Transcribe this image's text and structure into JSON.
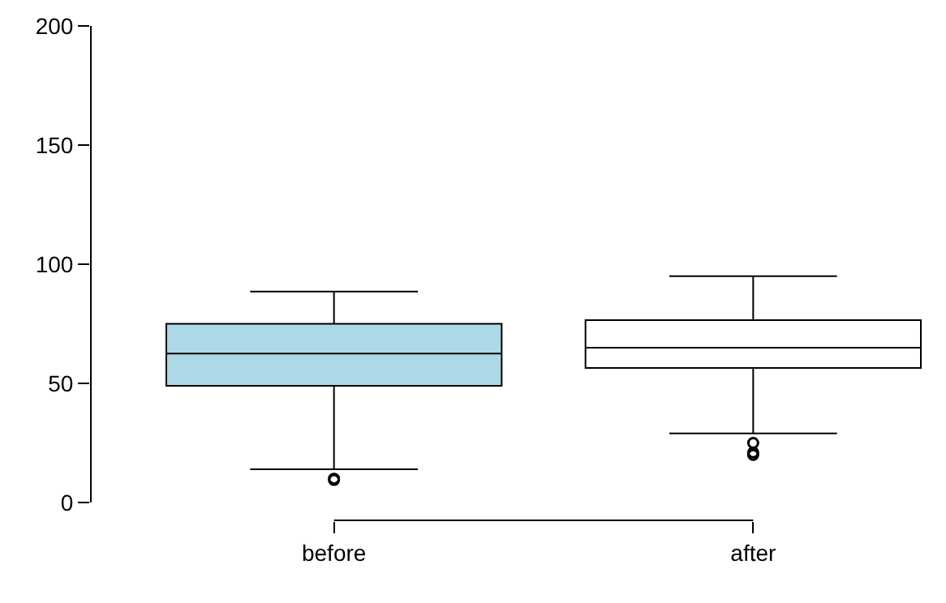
{
  "chart_data": {
    "type": "box",
    "categories": [
      "before",
      "after"
    ],
    "boxes": [
      {
        "low": 14,
        "q1": 49,
        "median": 62.5,
        "q3": 75,
        "high": 88.5,
        "outliers": [
          9.5,
          10
        ]
      },
      {
        "low": 29,
        "q1": 56.5,
        "median": 65,
        "q3": 76.5,
        "high": 95,
        "outliers": [
          20,
          21,
          25
        ]
      }
    ],
    "colors": [
      "#add8e6",
      "#ffffff"
    ],
    "ylim": [
      0,
      200
    ],
    "yticks": [
      0,
      50,
      100,
      150,
      200
    ]
  }
}
